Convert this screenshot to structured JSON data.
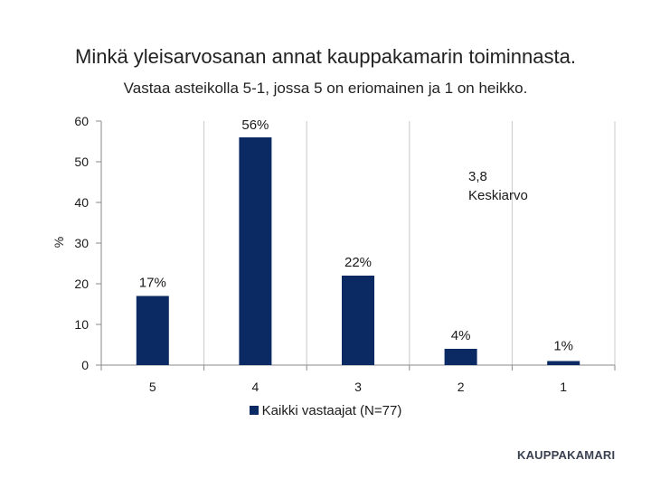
{
  "chart_data": {
    "type": "bar",
    "title": "Minkä yleisarvosanan annat kauppakamarin toiminnasta.",
    "subtitle": "Vastaa asteikolla 5-1, jossa 5 on eriomainen ja 1 on heikko.",
    "ylabel": "%",
    "xlabel": "",
    "categories": [
      "5",
      "4",
      "3",
      "2",
      "1"
    ],
    "ylim": [
      0,
      60
    ],
    "yticks": [
      "0",
      "10",
      "20",
      "30",
      "40",
      "50",
      "60"
    ],
    "grid": "vertical",
    "series": [
      {
        "name": "Kaikki vastaajat (N=77)",
        "values": [
          17,
          56,
          22,
          4,
          1
        ],
        "labels": [
          "17%",
          "56%",
          "22%",
          "4%",
          "1%"
        ],
        "color": "#0b2a63"
      }
    ],
    "annotations": [
      "3,8",
      "Keskiarvo"
    ],
    "legend": "bottom"
  },
  "brand": "KAUPPAKAMARI"
}
